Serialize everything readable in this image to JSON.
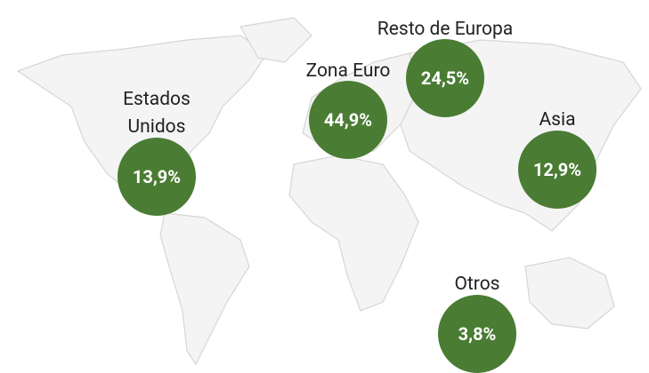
{
  "regions": [
    {
      "name": "Estados Unidos",
      "value": "13,9%"
    },
    {
      "name": "Zona Euro",
      "value": "44,9%"
    },
    {
      "name": "Resto de Europa",
      "value": "24,5%"
    },
    {
      "name": "Asia",
      "value": "12,9%"
    },
    {
      "name": "Otros",
      "value": "3,8%"
    }
  ]
}
